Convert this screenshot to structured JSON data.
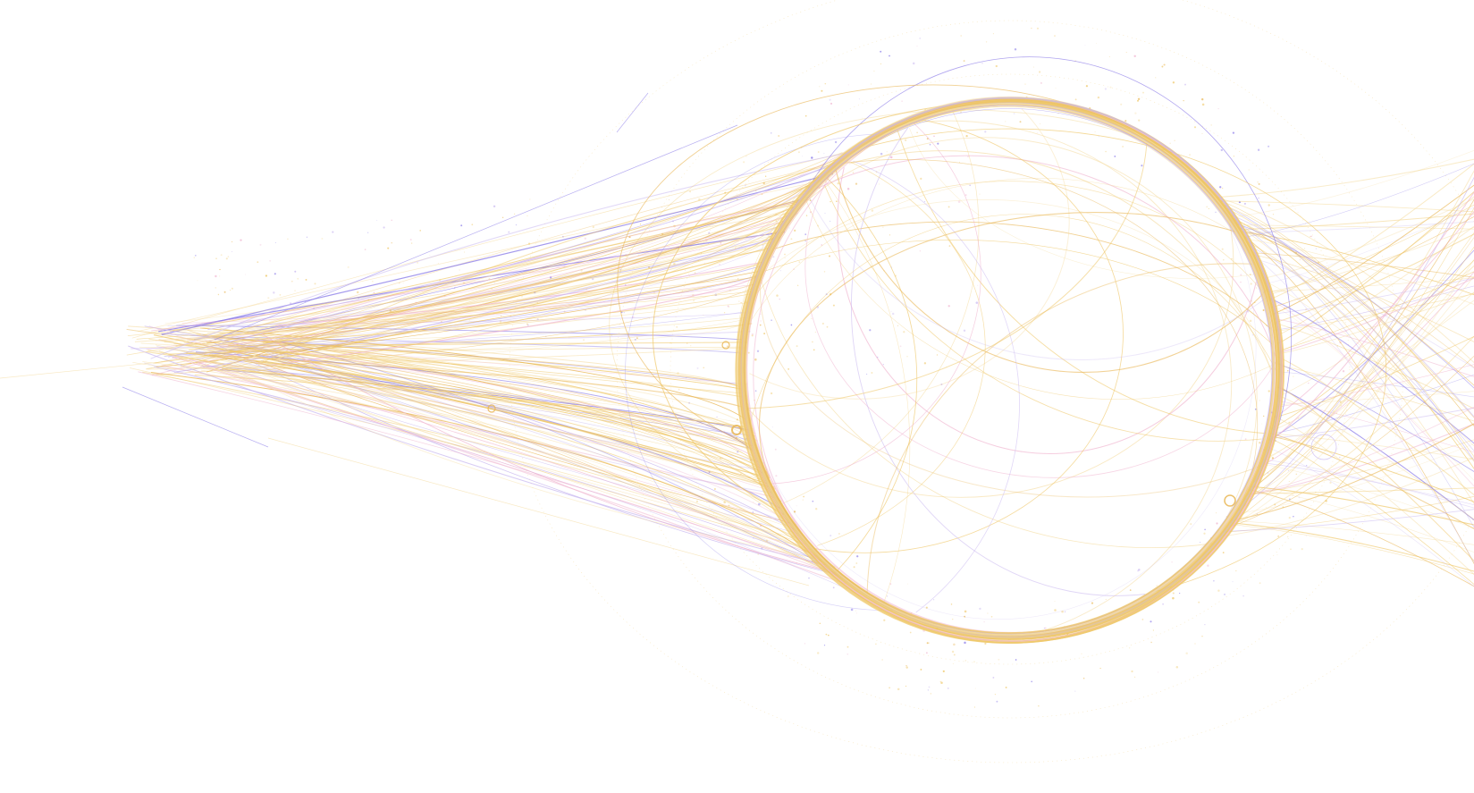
{
  "artwork": {
    "subject": "black-hole-light-trails",
    "colors": {
      "background": "#ffffff",
      "gold": "#efc86a",
      "gold_light": "#f5dca0",
      "amber": "#e9b654",
      "violet": "#8a7be8",
      "lavender": "#c9b8f0",
      "pink": "#f0b6d0"
    },
    "ring_count": 1,
    "small_circle_count": 5
  }
}
